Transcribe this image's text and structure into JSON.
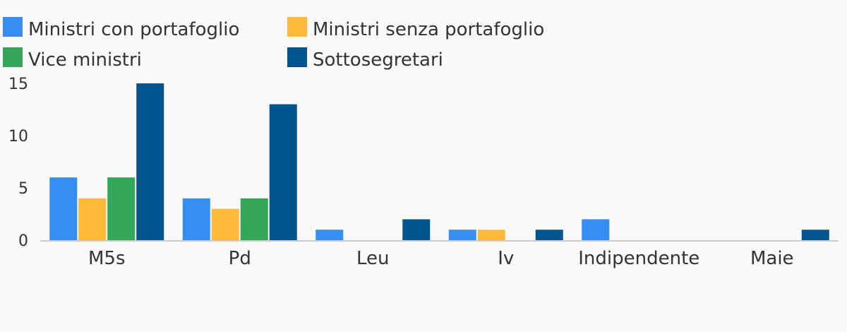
{
  "chart_data": {
    "type": "bar",
    "categories": [
      "M5s",
      "Pd",
      "Leu",
      "Iv",
      "Indipendente",
      "Maie"
    ],
    "series": [
      {
        "name": "Ministri con portafoglio",
        "color": "#368ef0",
        "values": [
          6,
          4,
          1,
          1,
          2,
          0
        ]
      },
      {
        "name": "Ministri senza portafoglio",
        "color": "#ffb93b",
        "values": [
          4,
          3,
          0,
          1,
          0,
          0
        ]
      },
      {
        "name": "Vice ministri",
        "color": "#33a65a",
        "values": [
          6,
          4,
          0,
          0,
          0,
          0
        ]
      },
      {
        "name": "Sottosegretari",
        "color": "#01558f",
        "values": [
          15,
          13,
          2,
          1,
          0,
          1
        ]
      }
    ],
    "yticks": [
      "0",
      "5",
      "10",
      "15"
    ],
    "ylim": [
      0,
      15
    ],
    "grid": false,
    "legend_position": "top-left"
  }
}
